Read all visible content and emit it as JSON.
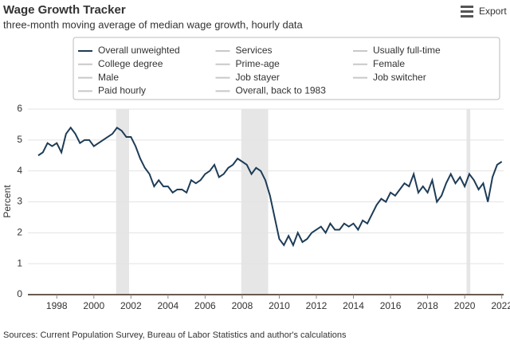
{
  "chart_data": {
    "type": "line",
    "title": "Wage Growth Tracker",
    "subtitle": "three-month moving average of median wage growth, hourly data",
    "export_label": "Export",
    "y_label": "Percent",
    "source": "Sources: Current Population Survey, Bureau of Labor Statistics and author's calculations",
    "x": [
      1997,
      1997.25,
      1997.5,
      1997.75,
      1998,
      1998.25,
      1998.5,
      1998.75,
      1999,
      1999.25,
      1999.5,
      1999.75,
      2000,
      2000.25,
      2000.5,
      2000.75,
      2001,
      2001.25,
      2001.5,
      2001.75,
      2002,
      2002.25,
      2002.5,
      2002.75,
      2003,
      2003.25,
      2003.5,
      2003.75,
      2004,
      2004.25,
      2004.5,
      2004.75,
      2005,
      2005.25,
      2005.5,
      2005.75,
      2006,
      2006.25,
      2006.5,
      2006.75,
      2007,
      2007.25,
      2007.5,
      2007.75,
      2008,
      2008.25,
      2008.5,
      2008.75,
      2009,
      2009.25,
      2009.5,
      2009.75,
      2010,
      2010.25,
      2010.5,
      2010.75,
      2011,
      2011.25,
      2011.5,
      2011.75,
      2012,
      2012.25,
      2012.5,
      2012.75,
      2013,
      2013.25,
      2013.5,
      2013.75,
      2014,
      2014.25,
      2014.5,
      2014.75,
      2015,
      2015.25,
      2015.5,
      2015.75,
      2016,
      2016.25,
      2016.5,
      2016.75,
      2017,
      2017.25,
      2017.5,
      2017.75,
      2018,
      2018.25,
      2018.5,
      2018.75,
      2019,
      2019.25,
      2019.5,
      2019.75,
      2020,
      2020.25,
      2020.5,
      2020.75,
      2021,
      2021.25,
      2021.5,
      2021.75,
      2022
    ],
    "series": [
      {
        "name": "Overall unweighted",
        "color": "#1d3c57",
        "values": [
          4.5,
          4.6,
          4.9,
          4.8,
          4.9,
          4.6,
          5.2,
          5.4,
          5.2,
          4.9,
          5.0,
          5.0,
          4.8,
          4.9,
          5.0,
          5.1,
          5.2,
          5.4,
          5.3,
          5.1,
          5.1,
          4.8,
          4.4,
          4.1,
          3.9,
          3.5,
          3.7,
          3.5,
          3.5,
          3.3,
          3.4,
          3.4,
          3.3,
          3.7,
          3.6,
          3.7,
          3.9,
          4.0,
          4.2,
          3.8,
          3.9,
          4.1,
          4.2,
          4.4,
          4.3,
          4.2,
          3.9,
          4.1,
          4.0,
          3.7,
          3.2,
          2.5,
          1.8,
          1.6,
          1.9,
          1.6,
          2.0,
          1.7,
          1.8,
          2.0,
          2.1,
          2.2,
          2.0,
          2.3,
          2.1,
          2.1,
          2.3,
          2.2,
          2.3,
          2.1,
          2.4,
          2.3,
          2.6,
          2.9,
          3.1,
          3.0,
          3.3,
          3.2,
          3.4,
          3.6,
          3.5,
          3.9,
          3.3,
          3.5,
          3.3,
          3.7,
          3.0,
          3.2,
          3.6,
          3.9,
          3.6,
          3.8,
          3.5,
          3.9,
          3.7,
          3.4,
          3.6,
          3.0,
          3.8,
          4.2,
          4.3
        ]
      }
    ],
    "legend_inactive": [
      "Services",
      "Usually full-time",
      "College degree",
      "Prime-age",
      "Female",
      "Male",
      "Job stayer",
      "Job switcher",
      "Paid hourly",
      "Overall, back to 1983"
    ],
    "inactive_color": "#c8c8c8",
    "shaded_ranges": [
      [
        2001.2,
        2001.9
      ],
      [
        2007.95,
        2009.4
      ],
      [
        2020.1,
        2020.3
      ]
    ],
    "shade_color": "#e6e6e6",
    "xlim": [
      1996.7,
      2022.1
    ],
    "xticks": [
      1998,
      2000,
      2002,
      2004,
      2006,
      2008,
      2010,
      2012,
      2014,
      2016,
      2018,
      2020,
      2022
    ],
    "ylim": [
      0,
      6
    ],
    "yticks": [
      0,
      1,
      2,
      3,
      4,
      5,
      6
    ],
    "grid": true
  }
}
